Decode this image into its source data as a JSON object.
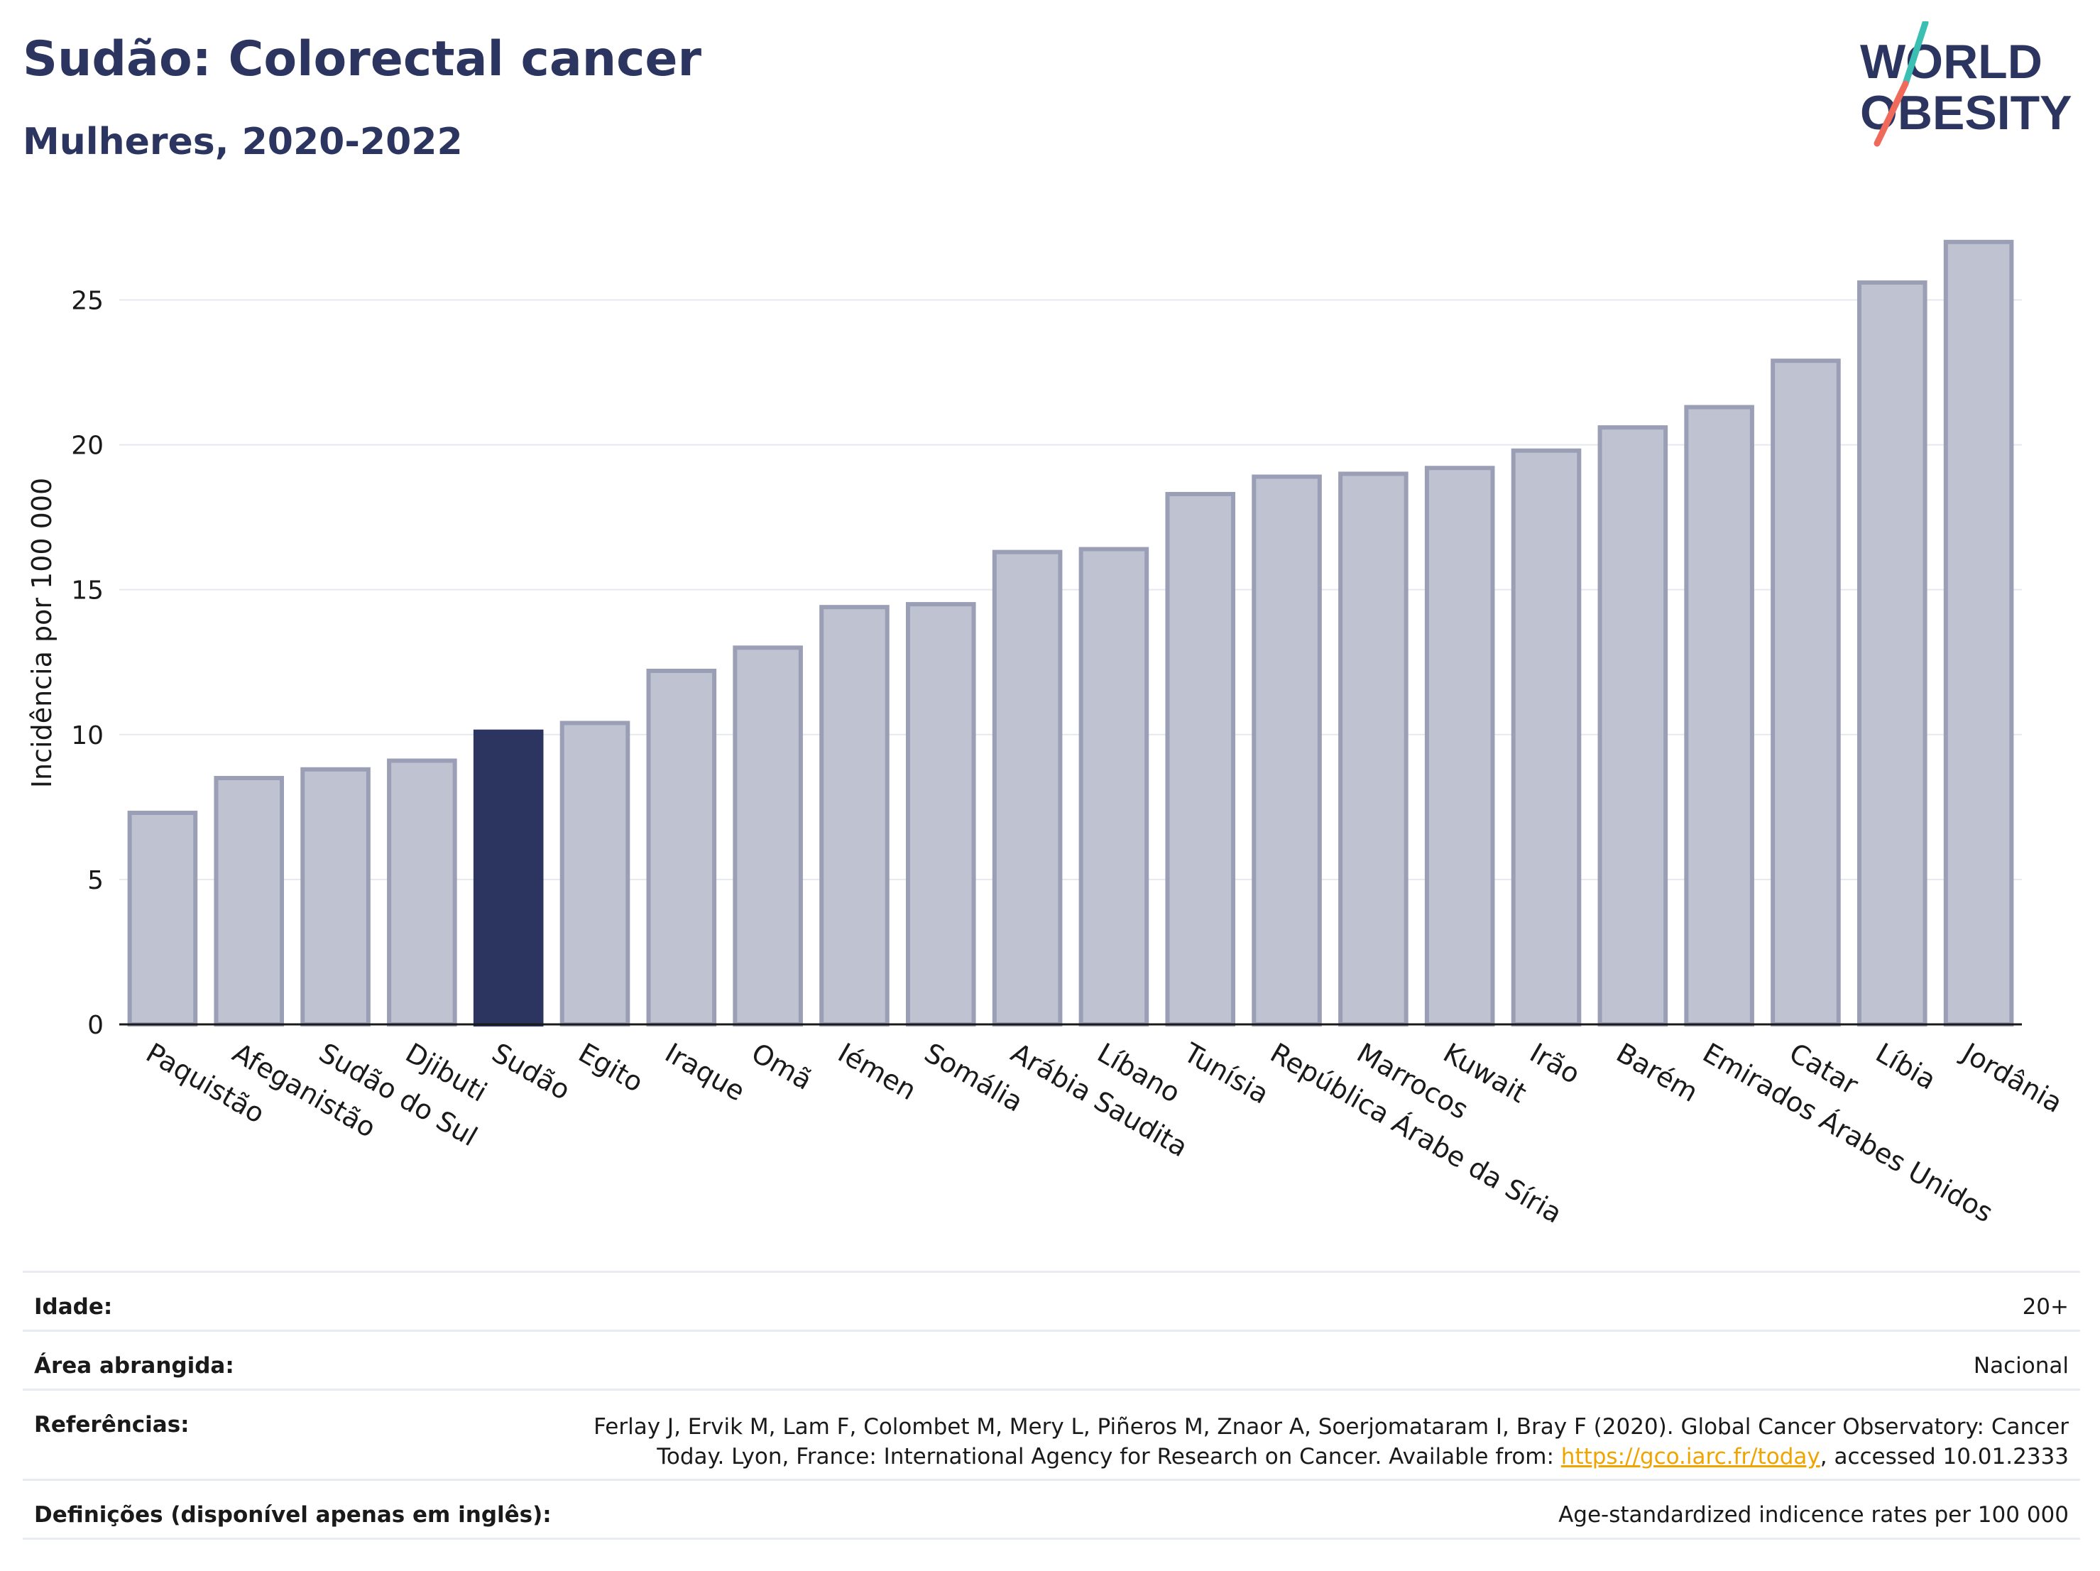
{
  "header": {
    "title": "Sudão: Colorectal cancer",
    "subtitle": "Mulheres, 2020-2022"
  },
  "logo": {
    "line1": "WORLD",
    "line2": "OBESITY",
    "colors": {
      "text": "#2b3560",
      "slash_teal": "#3bbfb3",
      "slash_coral": "#ef6a5a"
    }
  },
  "colors": {
    "bar_default": "#bfc2d0",
    "bar_border": "#9a9fb6",
    "bar_highlight": "#2b3560",
    "grid": "#e6e8ef",
    "axis": "#1a1a1a"
  },
  "chart_data": {
    "type": "bar",
    "ylabel": "Incidência por 100 000",
    "ylim": [
      0,
      28
    ],
    "yticks": [
      0,
      5,
      10,
      15,
      20,
      25
    ],
    "grid": true,
    "highlight": "Sudão",
    "categories": [
      "Paquistão",
      "Afeganistão",
      "Sudão do Sul",
      "Djibuti",
      "Sudão",
      "Egito",
      "Iraque",
      "Omã",
      "Iémen",
      "Somália",
      "Arábia Saudita",
      "Líbano",
      "Tunísia",
      "República Árabe da Síria",
      "Marrocos",
      "Kuwait",
      "Irão",
      "Barém",
      "Emirados Árabes Unidos",
      "Catar",
      "Líbia",
      "Jordânia"
    ],
    "values": [
      7.3,
      8.5,
      8.8,
      9.1,
      10.1,
      10.4,
      12.2,
      13.0,
      14.4,
      14.5,
      16.3,
      16.4,
      18.3,
      18.9,
      19.0,
      19.2,
      19.8,
      20.6,
      21.3,
      22.9,
      25.6,
      27.0
    ]
  },
  "info": {
    "age_label": "Idade:",
    "age_value": "20+",
    "area_label": "Área abrangida:",
    "area_value": "Nacional",
    "ref_label": "Referências:",
    "ref_text_1": "Ferlay J, Ervik M, Lam F, Colombet M, Mery L, Piñeros M, Znaor A, Soerjomataram I, Bray F (2020). Global Cancer Observatory: Cancer Today. Lyon, France: International Agency for Research on Cancer. Available from: ",
    "ref_link": "https://gco.iarc.fr/today",
    "ref_text_2": ", accessed 10.01.2333",
    "def_label": "Definições (disponível apenas em inglês):",
    "def_value": "Age-standardized indicence rates per 100 000"
  }
}
